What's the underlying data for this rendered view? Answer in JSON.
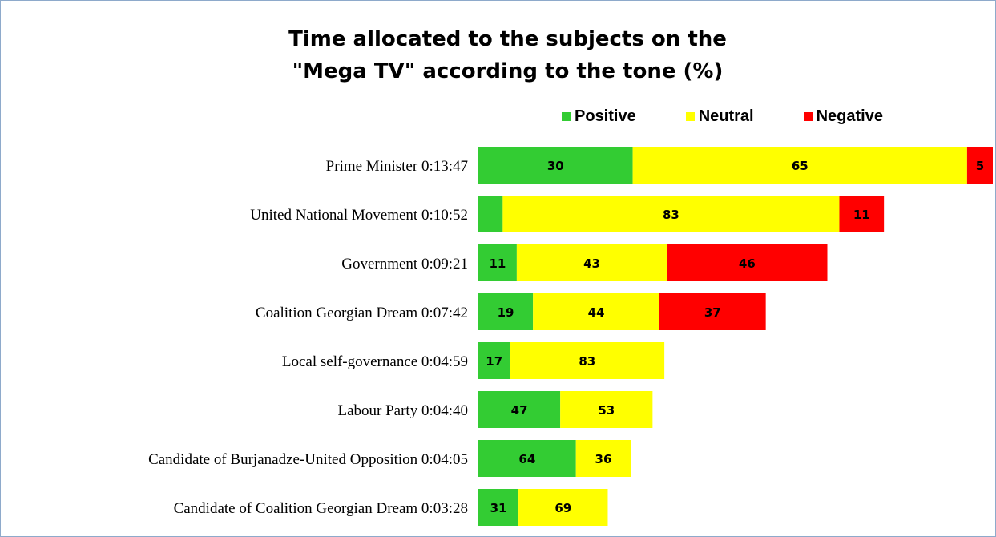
{
  "chart_data": {
    "type": "bar",
    "orientation": "horizontal",
    "stacked": true,
    "title_line1": "Time allocated to the subjects on the",
    "title_line2": "\"Mega TV\" according to the tone (%)",
    "legend_position": "top",
    "categories": [
      "Prime Minister 0:13:47",
      "United National Movement 0:10:52",
      "Government 0:09:21",
      "Coalition Georgian Dream 0:07:42",
      "Local self-governance 0:04:59",
      "Labour Party 0:04:40",
      "Candidate of Burjanadze-United Opposition 0:04:05",
      "Candidate of Coalition Georgian Dream 0:03:28"
    ],
    "durations_seconds": [
      827,
      652,
      561,
      462,
      299,
      280,
      245,
      208
    ],
    "series": [
      {
        "name": "Positive",
        "color": "#33cc33",
        "values": [
          30,
          6,
          11,
          19,
          17,
          47,
          64,
          31
        ],
        "labels": [
          "30",
          "",
          "11",
          "19",
          "17",
          "47",
          "64",
          "31"
        ]
      },
      {
        "name": "Neutral",
        "color": "#ffff00",
        "values": [
          65,
          83,
          43,
          44,
          83,
          53,
          36,
          69
        ],
        "labels": [
          "65",
          "83",
          "43",
          "44",
          "83",
          "53",
          "36",
          "69"
        ]
      },
      {
        "name": "Negative",
        "color": "#ff0000",
        "values": [
          5,
          11,
          46,
          37,
          0,
          0,
          0,
          0
        ],
        "labels": [
          "5",
          "11",
          "46",
          "37",
          "",
          "",
          "",
          ""
        ]
      }
    ],
    "grid": false
  }
}
